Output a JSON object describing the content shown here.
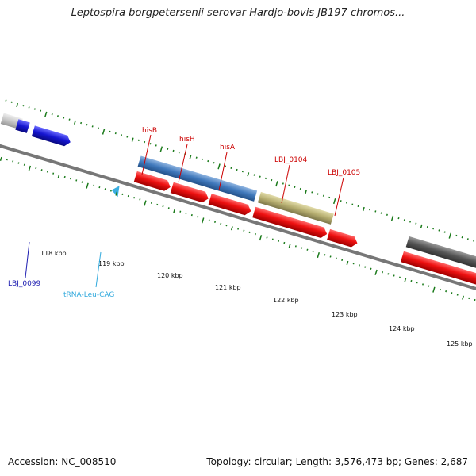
{
  "title": "Leptospira borgpetersenii serovar Hardjo-bovis JB197 chromos...",
  "footer": {
    "accession": "Accession: NC_008510",
    "summary": "Topology: circular; Length: 3,576,473 bp; Genes: 2,687"
  },
  "ticks": [
    "118 kbp",
    "119 kbp",
    "120 kbp",
    "121 kbp",
    "122 kbp",
    "123 kbp",
    "124 kbp",
    "125 kbp"
  ],
  "gene_labels": [
    "hisB",
    "hisH",
    "hisA",
    "LBJ_0104",
    "LBJ_0105"
  ],
  "bottom_labels": [
    "LBJ_0099",
    "tRNA-Leu-CAG"
  ],
  "colors": {
    "backbone": "#777777",
    "tick": "#1a7a1a",
    "cds": "#ee1111",
    "gene_blue": "#3370c0",
    "gene_khaki": "#b6ae70",
    "gene_dark": "#555555",
    "gene_navy": "#1515d0",
    "label_red": "#cc0000",
    "label_blue": "#1a1ab0",
    "label_cyan": "#33aadd"
  }
}
